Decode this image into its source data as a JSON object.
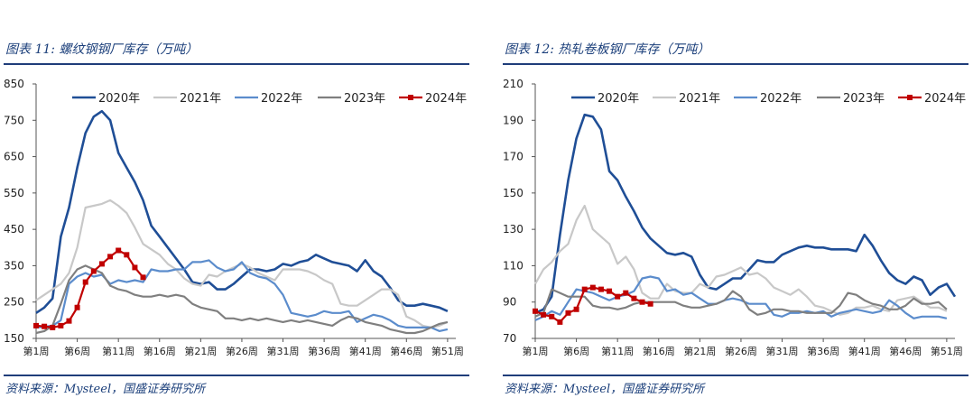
{
  "panels": [
    {
      "figure_title": "图表 11:  螺纹钢钢厂库存（万吨）",
      "source": "资料来源：Mysteel，国盛证券研究所"
    },
    {
      "figure_title": "图表 12:  热轧卷板钢厂库存（万吨）",
      "source": "资料来源：Mysteel，国盛证券研究所"
    }
  ],
  "chart_data": [
    {
      "type": "line",
      "title": "",
      "ylim": [
        150,
        850
      ],
      "yticks": [
        150,
        250,
        350,
        450,
        550,
        650,
        750,
        850
      ],
      "xlim": [
        1,
        52
      ],
      "xtick_positions": [
        1,
        6,
        11,
        16,
        21,
        26,
        31,
        36,
        41,
        46,
        51
      ],
      "xtick_labels": [
        "第1周",
        "第6周",
        "第11周",
        "第16周",
        "第21周",
        "第26周",
        "第31周",
        "第36周",
        "第41周",
        "第46周",
        "第51周"
      ],
      "legend": "top",
      "series": [
        {
          "name": "2020年",
          "color": "#1f4e96",
          "marker": false,
          "values": [
            220,
            235,
            260,
            430,
            510,
            620,
            715,
            760,
            775,
            750,
            660,
            620,
            580,
            530,
            460,
            430,
            400,
            370,
            340,
            305,
            300,
            305,
            285,
            285,
            300,
            320,
            340,
            340,
            335,
            340,
            355,
            350,
            360,
            365,
            380,
            370,
            360,
            355,
            350,
            335,
            365,
            335,
            320,
            290,
            255,
            240,
            240,
            245,
            240,
            235,
            225
          ]
        },
        {
          "name": "2021年",
          "color": "#c8c8c8",
          "marker": false,
          "values": [
            255,
            270,
            285,
            300,
            330,
            400,
            510,
            515,
            520,
            530,
            515,
            495,
            455,
            410,
            395,
            380,
            355,
            340,
            315,
            300,
            295,
            325,
            320,
            335,
            345,
            355,
            345,
            330,
            320,
            310,
            340,
            340,
            340,
            335,
            325,
            310,
            300,
            245,
            240,
            240,
            255,
            270,
            285,
            285,
            270,
            210,
            200,
            185,
            180,
            185,
            195
          ]
        },
        {
          "name": "2022年",
          "color": "#5b8ccc",
          "marker": false,
          "values": [
            180,
            182,
            185,
            200,
            300,
            320,
            330,
            320,
            325,
            300,
            310,
            305,
            310,
            305,
            340,
            335,
            335,
            340,
            340,
            360,
            360,
            365,
            345,
            335,
            340,
            360,
            330,
            320,
            315,
            300,
            270,
            220,
            215,
            210,
            215,
            225,
            220,
            220,
            225,
            195,
            205,
            215,
            210,
            200,
            185,
            180,
            180,
            180,
            180,
            170,
            175
          ]
        },
        {
          "name": "2023年",
          "color": "#7f7f7f",
          "marker": false,
          "values": [
            165,
            170,
            185,
            245,
            310,
            340,
            350,
            340,
            330,
            295,
            285,
            280,
            270,
            265,
            265,
            270,
            265,
            270,
            265,
            245,
            235,
            230,
            225,
            205,
            205,
            200,
            205,
            200,
            205,
            200,
            195,
            200,
            195,
            200,
            195,
            190,
            185,
            200,
            210,
            205,
            195,
            190,
            185,
            175,
            170,
            165,
            165,
            170,
            180,
            190,
            195
          ]
        },
        {
          "name": "2024年",
          "color": "#c00000",
          "marker": true,
          "values": [
            185,
            183,
            180,
            185,
            198,
            235,
            305,
            335,
            355,
            375,
            392,
            380,
            345,
            318
          ]
        }
      ]
    },
    {
      "type": "line",
      "title": "",
      "ylim": [
        70,
        210
      ],
      "yticks": [
        70,
        90,
        110,
        130,
        150,
        170,
        190,
        210
      ],
      "xlim": [
        1,
        52
      ],
      "xtick_positions": [
        1,
        6,
        11,
        16,
        21,
        26,
        31,
        36,
        41,
        46,
        51
      ],
      "xtick_labels": [
        "第1周",
        "第6周",
        "第11周",
        "第16周",
        "第21周",
        "第26周",
        "第31周",
        "第36周",
        "第41周",
        "第46周",
        "第51周"
      ],
      "legend": "top",
      "series": [
        {
          "name": "2020年",
          "color": "#1f4e96",
          "marker": false,
          "values": [
            84,
            86,
            93,
            127,
            157,
            180,
            193,
            192,
            185,
            162,
            157,
            148,
            140,
            131,
            125,
            121,
            117,
            116,
            117,
            115,
            105,
            98,
            97,
            100,
            103,
            103,
            108,
            113,
            112,
            112,
            116,
            118,
            120,
            121,
            120,
            120,
            119,
            119,
            119,
            118,
            127,
            121,
            113,
            106,
            102,
            100,
            104,
            102,
            94,
            98,
            100,
            93
          ]
        },
        {
          "name": "2021年",
          "color": "#c8c8c8",
          "marker": false,
          "values": [
            100,
            108,
            112,
            118,
            122,
            135,
            143,
            130,
            126,
            122,
            111,
            115,
            108,
            95,
            92,
            92,
            100,
            96,
            95,
            95,
            100,
            98,
            104,
            105,
            107,
            109,
            105,
            106,
            103,
            98,
            96,
            94,
            97,
            93,
            88,
            87,
            85,
            83,
            84,
            87,
            87,
            88,
            86,
            85,
            91,
            92,
            93,
            90,
            87,
            87,
            85
          ]
        },
        {
          "name": "2022年",
          "color": "#5b8ccc",
          "marker": false,
          "values": [
            80,
            82,
            85,
            83,
            90,
            97,
            96,
            95,
            93,
            91,
            93,
            94,
            96,
            103,
            104,
            103,
            96,
            97,
            94,
            95,
            92,
            89,
            89,
            91,
            92,
            91,
            89,
            89,
            89,
            83,
            82,
            84,
            84,
            85,
            84,
            85,
            82,
            84,
            85,
            86,
            85,
            84,
            85,
            91,
            88,
            84,
            81,
            82,
            82,
            82,
            81
          ]
        },
        {
          "name": "2023年",
          "color": "#7f7f7f",
          "marker": false,
          "values": [
            82,
            84,
            97,
            95,
            93,
            93,
            93,
            88,
            87,
            87,
            86,
            87,
            89,
            90,
            90,
            90,
            90,
            90,
            88,
            87,
            87,
            88,
            89,
            91,
            96,
            93,
            86,
            83,
            84,
            86,
            86,
            85,
            85,
            84,
            84,
            84,
            84,
            88,
            95,
            94,
            91,
            89,
            88,
            86,
            86,
            88,
            92,
            89,
            89,
            90,
            86
          ]
        },
        {
          "name": "2024年",
          "color": "#c00000",
          "marker": true,
          "values": [
            85,
            83,
            82,
            79,
            84,
            86,
            97,
            98,
            97,
            96,
            93,
            95,
            92,
            90,
            89
          ]
        }
      ]
    }
  ]
}
